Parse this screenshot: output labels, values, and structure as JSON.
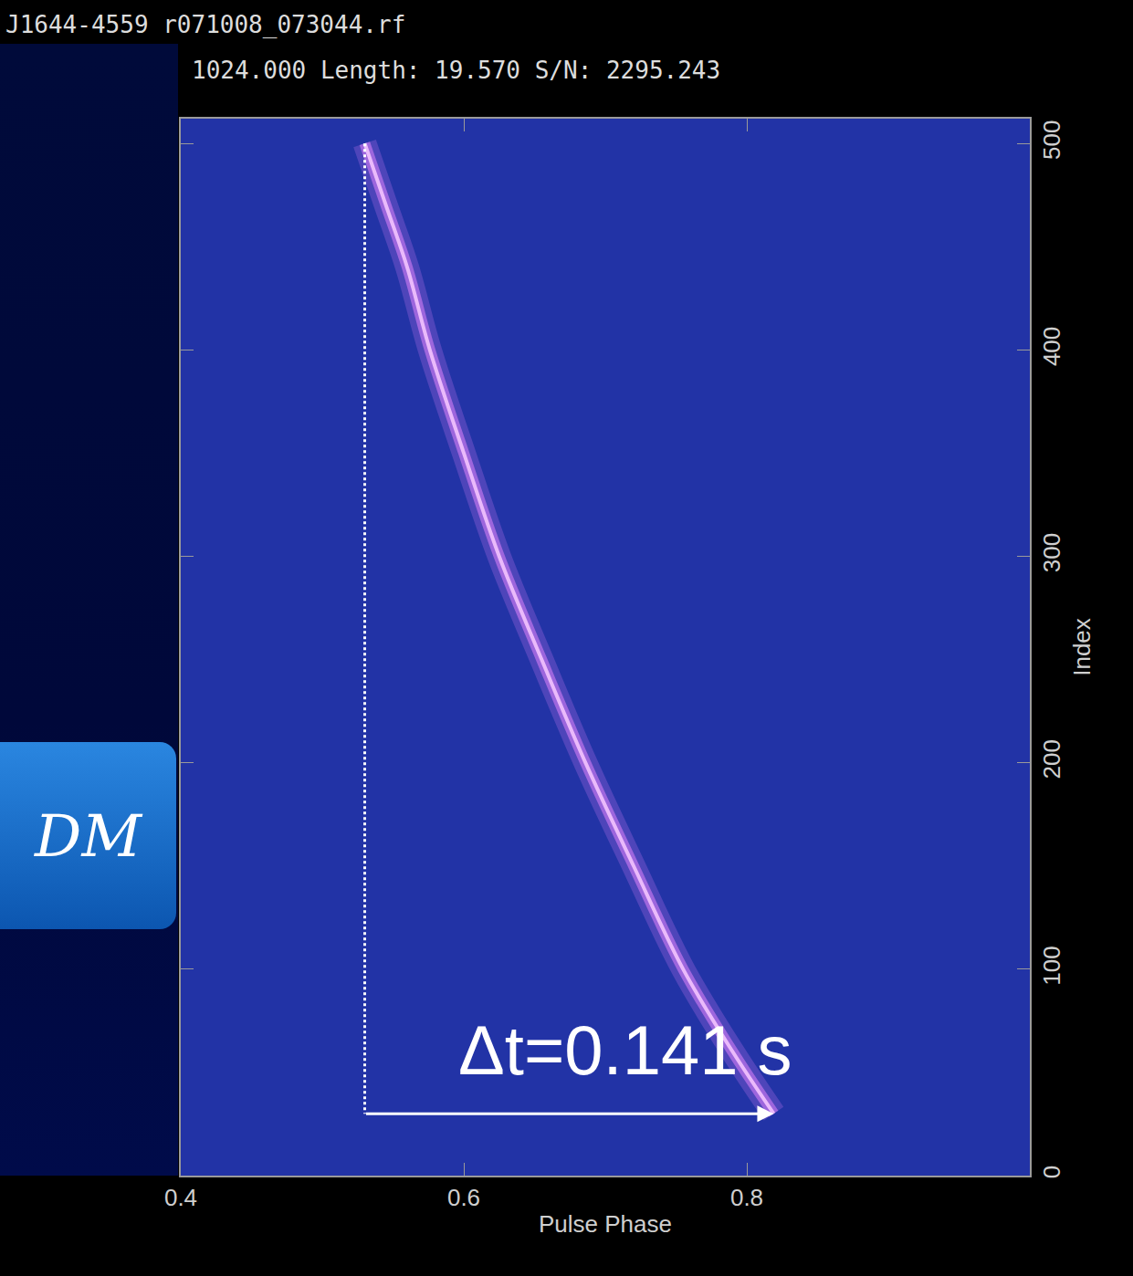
{
  "chart_data": {
    "type": "line",
    "title": "J1644-4559 r071008_073044.rf",
    "subtitle": "1024.000 Length: 19.570 S/N: 2295.243",
    "side_label": "DM",
    "x_label": "Pulse Phase",
    "y_label": "Index",
    "annotation": "Δt=0.141 s",
    "color": "#d27cf5",
    "x": [
      0.53,
      0.545,
      0.56,
      0.576,
      0.6,
      0.625,
      0.655,
      0.686,
      0.72,
      0.755,
      0.79,
      0.819
    ],
    "values": [
      500,
      470,
      440,
      400,
      350,
      300,
      250,
      200,
      150,
      100,
      60,
      30
    ],
    "xlim": [
      0.4,
      1.0
    ],
    "xticks": [
      0.4,
      0.6,
      0.8
    ],
    "ylim": [
      0,
      512
    ],
    "yticks": [
      0,
      100,
      200,
      300,
      400,
      500
    ],
    "grid": false
  }
}
